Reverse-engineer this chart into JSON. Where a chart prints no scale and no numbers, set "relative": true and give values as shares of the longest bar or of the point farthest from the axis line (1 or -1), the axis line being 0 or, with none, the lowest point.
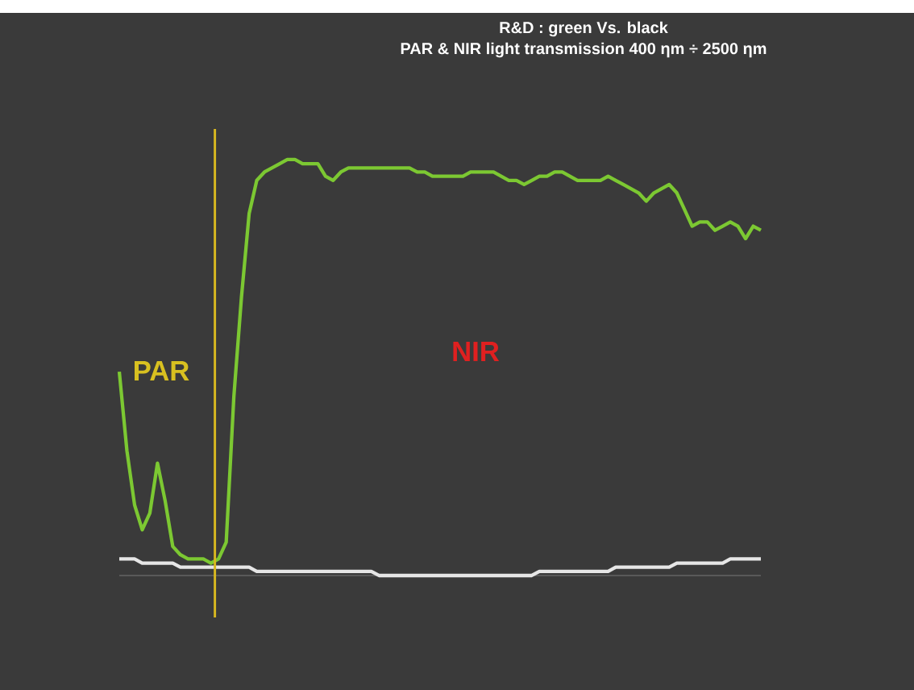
{
  "chart_data": {
    "type": "line",
    "relative": true,
    "title": "R&D : green Vs. black",
    "subtitle": "PAR & NIR light transmission 400 ηm ÷ 2500 ηm",
    "categories": [
      null,
      null,
      null,
      null,
      null,
      null,
      null,
      null,
      null,
      null,
      null,
      null,
      null,
      null,
      null,
      null,
      null,
      null,
      null,
      null,
      null,
      null,
      null,
      null,
      null,
      null,
      null,
      null,
      null,
      null,
      null,
      null,
      null,
      null,
      null,
      null,
      null,
      null,
      null,
      null,
      null,
      null,
      null,
      null,
      null,
      null,
      null,
      null,
      null,
      null,
      null,
      null,
      null,
      null,
      null,
      null,
      null,
      null,
      null,
      null,
      null,
      null,
      null,
      null,
      null,
      null,
      null,
      null,
      null,
      null,
      null,
      null,
      null,
      null,
      null,
      null,
      null,
      null,
      null,
      null,
      null,
      null,
      null,
      null,
      null
    ],
    "series": [
      {
        "color": "#e6e6e6",
        "values": [
          0.04,
          0.04,
          0.04,
          0.03,
          0.03,
          0.03,
          0.03,
          0.03,
          0.02,
          0.02,
          0.02,
          0.02,
          0.02,
          0.02,
          0.02,
          0.02,
          0.02,
          0.02,
          0.01,
          0.01,
          0.01,
          0.01,
          0.01,
          0.01,
          0.01,
          0.01,
          0.01,
          0.01,
          0.01,
          0.01,
          0.01,
          0.01,
          0.01,
          0.01,
          0.0,
          0.0,
          0.0,
          0.0,
          0.0,
          0.0,
          0.0,
          0.0,
          0.0,
          0.0,
          0.0,
          0.0,
          0.0,
          0.0,
          0.0,
          0.0,
          0.0,
          0.0,
          0.0,
          0.0,
          0.0,
          0.01,
          0.01,
          0.01,
          0.01,
          0.01,
          0.01,
          0.01,
          0.01,
          0.01,
          0.01,
          0.02,
          0.02,
          0.02,
          0.02,
          0.02,
          0.02,
          0.02,
          0.02,
          0.03,
          0.03,
          0.03,
          0.03,
          0.03,
          0.03,
          0.03,
          0.04,
          0.04,
          0.04,
          0.04,
          0.04
        ]
      },
      {
        "color": "#7cc832",
        "values": [
          0.49,
          0.3,
          0.17,
          0.11,
          0.15,
          0.27,
          0.18,
          0.07,
          0.05,
          0.04,
          0.04,
          0.04,
          0.03,
          0.04,
          0.08,
          0.43,
          0.67,
          0.87,
          0.95,
          0.97,
          0.98,
          0.99,
          1.0,
          1.0,
          0.99,
          0.99,
          0.99,
          0.96,
          0.95,
          0.97,
          0.98,
          0.98,
          0.98,
          0.98,
          0.98,
          0.98,
          0.98,
          0.98,
          0.98,
          0.97,
          0.97,
          0.96,
          0.96,
          0.96,
          0.96,
          0.96,
          0.97,
          0.97,
          0.97,
          0.97,
          0.96,
          0.95,
          0.95,
          0.94,
          0.95,
          0.96,
          0.96,
          0.97,
          0.97,
          0.96,
          0.95,
          0.95,
          0.95,
          0.95,
          0.96,
          0.95,
          0.94,
          0.93,
          0.92,
          0.9,
          0.92,
          0.93,
          0.94,
          0.92,
          0.88,
          0.84,
          0.85,
          0.85,
          0.83,
          0.84,
          0.85,
          0.84,
          0.81,
          0.84,
          0.83
        ]
      }
    ],
    "annotations": [
      "PAR",
      "NIR"
    ]
  }
}
